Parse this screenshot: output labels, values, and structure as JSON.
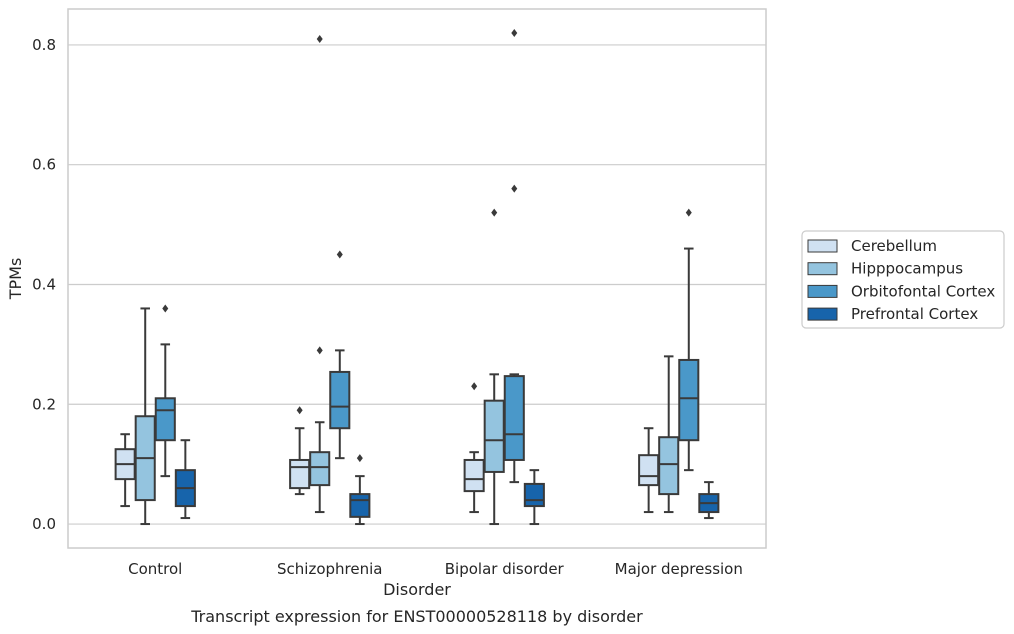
{
  "chart_data": {
    "type": "box",
    "caption": "Transcript expression for ENST00000528118 by disorder",
    "xlabel": "Disorder",
    "ylabel": "TPMs",
    "ylim": [
      -0.04,
      0.86
    ],
    "yticks": [
      0.0,
      0.2,
      0.4,
      0.6,
      0.8
    ],
    "ytick_labels": [
      "0.0",
      "0.2",
      "0.4",
      "0.6",
      "0.8"
    ],
    "grid": "horizontal",
    "legend_position": "right",
    "categories": [
      "Control",
      "Schizophrenia",
      "Bipolar disorder",
      "Major depression"
    ],
    "series": [
      {
        "name": "Cerebellum",
        "color": "#d0e1f2",
        "boxes": [
          {
            "whislo": 0.03,
            "q1": 0.075,
            "med": 0.1,
            "q3": 0.125,
            "whishi": 0.15,
            "fliers": []
          },
          {
            "whislo": 0.05,
            "q1": 0.06,
            "med": 0.095,
            "q3": 0.107,
            "whishi": 0.16,
            "fliers": [
              0.19
            ]
          },
          {
            "whislo": 0.02,
            "q1": 0.055,
            "med": 0.075,
            "q3": 0.107,
            "whishi": 0.12,
            "fliers": [
              0.23
            ]
          },
          {
            "whislo": 0.02,
            "q1": 0.065,
            "med": 0.08,
            "q3": 0.115,
            "whishi": 0.16,
            "fliers": []
          }
        ]
      },
      {
        "name": "Hipppocampus",
        "color": "#94c4df",
        "boxes": [
          {
            "whislo": 0.0,
            "q1": 0.04,
            "med": 0.11,
            "q3": 0.18,
            "whishi": 0.36,
            "fliers": []
          },
          {
            "whislo": 0.02,
            "q1": 0.065,
            "med": 0.095,
            "q3": 0.12,
            "whishi": 0.17,
            "fliers": [
              0.29,
              0.81
            ]
          },
          {
            "whislo": 0.0,
            "q1": 0.087,
            "med": 0.14,
            "q3": 0.206,
            "whishi": 0.25,
            "fliers": [
              0.52
            ]
          },
          {
            "whislo": 0.02,
            "q1": 0.05,
            "med": 0.1,
            "q3": 0.145,
            "whishi": 0.28,
            "fliers": []
          }
        ]
      },
      {
        "name": "Orbitofontal Cortex",
        "color": "#4a98c9",
        "boxes": [
          {
            "whislo": 0.08,
            "q1": 0.14,
            "med": 0.19,
            "q3": 0.21,
            "whishi": 0.3,
            "fliers": [
              0.36
            ]
          },
          {
            "whislo": 0.11,
            "q1": 0.16,
            "med": 0.196,
            "q3": 0.254,
            "whishi": 0.29,
            "fliers": [
              0.45
            ]
          },
          {
            "whislo": 0.07,
            "q1": 0.107,
            "med": 0.15,
            "q3": 0.247,
            "whishi": 0.25,
            "fliers": [
              0.56,
              0.82
            ]
          },
          {
            "whislo": 0.09,
            "q1": 0.14,
            "med": 0.21,
            "q3": 0.274,
            "whishi": 0.46,
            "fliers": [
              0.52
            ]
          }
        ]
      },
      {
        "name": "Prefrontal Cortex",
        "color": "#1764ab",
        "boxes": [
          {
            "whislo": 0.01,
            "q1": 0.03,
            "med": 0.06,
            "q3": 0.09,
            "whishi": 0.14,
            "fliers": []
          },
          {
            "whislo": 0.0,
            "q1": 0.012,
            "med": 0.04,
            "q3": 0.05,
            "whishi": 0.08,
            "fliers": [
              0.11
            ]
          },
          {
            "whislo": 0.0,
            "q1": 0.03,
            "med": 0.04,
            "q3": 0.067,
            "whishi": 0.09,
            "fliers": []
          },
          {
            "whislo": 0.01,
            "q1": 0.02,
            "med": 0.035,
            "q3": 0.05,
            "whishi": 0.07,
            "fliers": []
          }
        ]
      }
    ]
  }
}
